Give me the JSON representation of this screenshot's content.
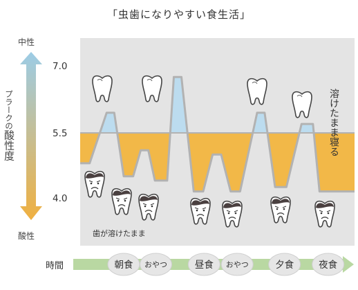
{
  "title": "「虫歯になりやすい食生活」",
  "axis": {
    "top_label": "中性",
    "bottom_label": "酸性",
    "side_label_prefix": "プラークの",
    "side_label_main": "酸性度",
    "time_label": "時間"
  },
  "colors": {
    "plot_bg": "#e4e4e4",
    "acid_fill": "#f2b848",
    "neutral_fill": "#bcdcef",
    "line": "#b2b2b2",
    "arrow_top": "#9ccce6",
    "arrow_bottom": "#f0b040",
    "time_arrow": "#b9d8a2",
    "meal_circle": "#e6e6e6"
  },
  "annotations": {
    "melting_teeth": "歯が溶けたまま",
    "sleep_melting": "溶けたまま寝る"
  },
  "icons": {
    "healthy_tooth": "healthy-tooth-icon",
    "decayed_tooth": "decayed-tooth-icon"
  },
  "chart_data": {
    "type": "line",
    "title": "「虫歯になりやすい食生活」",
    "ylabel": "プラークの酸性度",
    "xlabel": "時間",
    "yticks": [
      7.0,
      5.5,
      4.0
    ],
    "ylim": [
      3.4,
      7.6
    ],
    "critical_ph": 5.5,
    "meals": [
      {
        "label": "朝食",
        "x": 2.3
      },
      {
        "label": "おやつ",
        "x": 4.0
      },
      {
        "label": "昼食",
        "x": 6.55
      },
      {
        "label": "おやつ",
        "x": 8.3
      },
      {
        "label": "夕食",
        "x": 10.8
      },
      {
        "label": "夜食",
        "x": 13.1
      }
    ],
    "series": [
      {
        "x": [
          0,
          0.5,
          1.4,
          1.8,
          2.3,
          2.8,
          3.2,
          3.6,
          3.95,
          4.6,
          4.95,
          5.35,
          6.0,
          6.5,
          7.0,
          7.45,
          7.95,
          8.45,
          9.35,
          9.75,
          10.3,
          10.9,
          11.7,
          12.3,
          12.65,
          13.3,
          13.75,
          14.5
        ],
        "y": [
          4.8,
          4.8,
          5.95,
          5.95,
          4.5,
          4.5,
          5.1,
          5.1,
          4.4,
          4.4,
          6.75,
          6.75,
          4.15,
          4.15,
          5.0,
          5.0,
          4.15,
          4.15,
          5.95,
          5.95,
          4.25,
          4.25,
          5.7,
          5.7,
          4.15,
          4.15,
          4.15,
          4.15
        ]
      }
    ]
  }
}
